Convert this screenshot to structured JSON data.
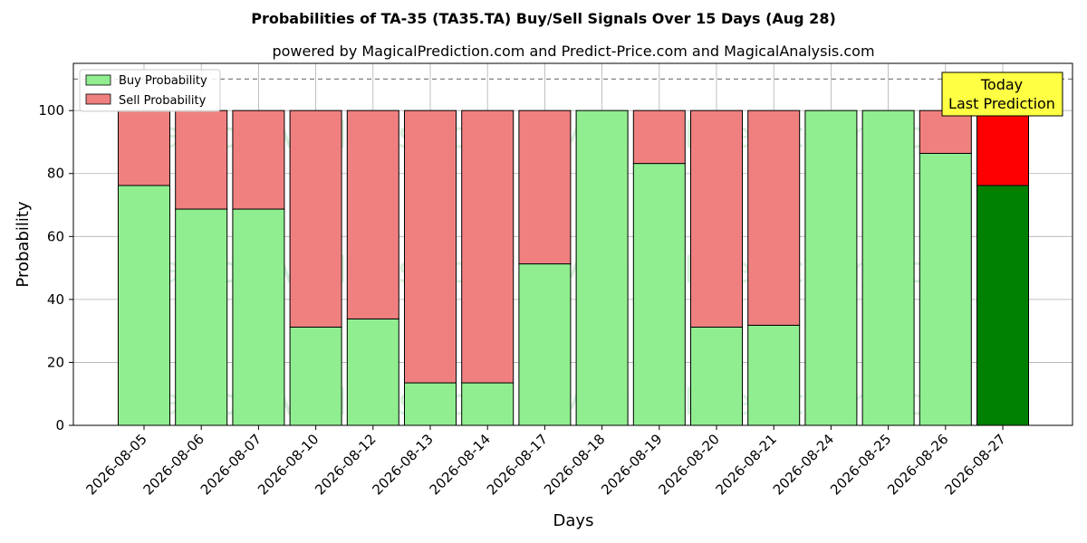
{
  "chart_data": {
    "type": "bar",
    "stacked": true,
    "title": "Probabilities of TA-35 (TA35.TA) Buy/Sell Signals Over 15 Days (Aug 28)",
    "subtitle": "powered by MagicalPrediction.com and Predict-Price.com and MagicalAnalysis.com",
    "xlabel": "Days",
    "ylabel": "Probability",
    "ylim": [
      0,
      115
    ],
    "yticks": [
      "0",
      "20",
      "40",
      "60",
      "80",
      "100"
    ],
    "reference_line": 110,
    "grid": true,
    "legend_position": "top-left",
    "categories": [
      "2026-08-05",
      "2026-08-06",
      "2026-08-07",
      "2026-08-10",
      "2026-08-12",
      "2026-08-13",
      "2026-08-14",
      "2026-08-17",
      "2026-08-18",
      "2026-08-19",
      "2026-08-20",
      "2026-08-21",
      "2026-08-24",
      "2026-08-25",
      "2026-08-26",
      "2026-08-27"
    ],
    "series": [
      {
        "name": "Buy Probability",
        "color": "#90ee90",
        "highlight_color": "#008000",
        "values": [
          76.2,
          68.7,
          68.7,
          31.2,
          33.8,
          13.5,
          13.5,
          51.3,
          100,
          83.2,
          31.2,
          31.8,
          100,
          100,
          86.4,
          76.2
        ]
      },
      {
        "name": "Sell Probability",
        "color": "#f08080",
        "highlight_color": "#ff0000",
        "values": [
          23.8,
          31.3,
          31.3,
          68.8,
          66.2,
          86.5,
          86.5,
          48.7,
          0,
          16.8,
          68.8,
          68.2,
          0,
          0,
          13.6,
          23.8
        ]
      }
    ],
    "highlight_index": 15,
    "annotation": {
      "lines": [
        "Today",
        "Last Prediction"
      ],
      "bg": "#ffff44"
    },
    "watermark": [
      "MagicalAnalysis.com",
      "MagicalPrediction.com"
    ]
  }
}
